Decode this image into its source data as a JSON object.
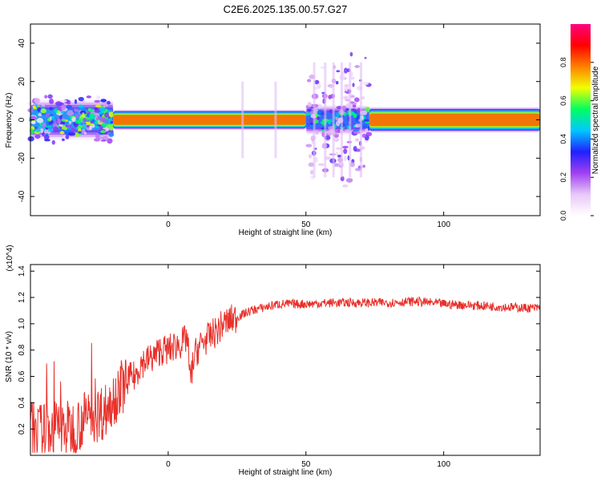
{
  "figure": {
    "title": "C2E6.2025.135.00.57.G27"
  },
  "chart_data": [
    {
      "type": "heatmap",
      "xlabel": "Height of straight line (km)",
      "ylabel": "Frequency (Hz)",
      "xlim": [
        -50,
        135
      ],
      "ylim": [
        -50,
        50
      ],
      "x_ticks": [
        0,
        50,
        100
      ],
      "y_ticks": [
        -40,
        -20,
        0,
        20,
        40
      ],
      "colorbar": {
        "label": "Normalized spectral amplitude",
        "range": [
          0,
          1
        ],
        "ticks": [
          "0.0",
          "0.2",
          "0.4",
          "0.6",
          "0.8"
        ],
        "colormap": [
          "#ffffff",
          "#e8c8f8",
          "#a040f0",
          "#2020ff",
          "#00c8ff",
          "#00ff60",
          "#f0ff00",
          "#ff8000",
          "#ff0000",
          "#ff0080"
        ]
      },
      "segments": [
        {
          "x0": -50,
          "x1": -20,
          "half_width_hz": 4,
          "peak": 0.45,
          "noisy": true
        },
        {
          "x0": -20,
          "x1": 50,
          "half_width_hz": 2,
          "peak": 0.8,
          "noisy": false
        },
        {
          "x0": 50,
          "x1": 73,
          "half_width_hz": 3,
          "peak": 0.4,
          "noisy": true
        },
        {
          "x0": 73,
          "x1": 135,
          "half_width_hz": 2.5,
          "peak": 0.8,
          "noisy": false
        }
      ]
    },
    {
      "type": "line",
      "xlabel": "Height of straight line (km)",
      "ylabel": "SNR (10 * v/v)",
      "y_scale_label": "(x10^4)",
      "xlim": [
        -50,
        135
      ],
      "ylim": [
        0,
        1.45
      ],
      "x_ticks": [
        0,
        50,
        100
      ],
      "y_ticks": [
        "0.2",
        "0.4",
        "0.6",
        "0.8",
        "1.0",
        "1.2",
        "1.4"
      ],
      "series": [
        {
          "color": "#e8302a",
          "x": [
            -50,
            -45,
            -40,
            -35,
            -30,
            -25,
            -22,
            -20,
            -18,
            -15,
            -12,
            -10,
            -8,
            -5,
            -3,
            0,
            3,
            5,
            7,
            8,
            9,
            10,
            12,
            15,
            18,
            20,
            25,
            30,
            40,
            50,
            60,
            70,
            80,
            90,
            100,
            110,
            120,
            130,
            135
          ],
          "y": [
            0.2,
            0.18,
            0.22,
            0.2,
            0.28,
            0.32,
            0.35,
            0.45,
            0.48,
            0.58,
            0.6,
            0.7,
            0.72,
            0.75,
            0.8,
            0.8,
            0.84,
            0.85,
            0.9,
            0.55,
            0.7,
            0.78,
            0.85,
            0.9,
            0.95,
            1.0,
            1.05,
            1.1,
            1.15,
            1.15,
            1.16,
            1.16,
            1.16,
            1.17,
            1.15,
            1.14,
            1.13,
            1.12,
            1.12
          ]
        }
      ]
    }
  ]
}
